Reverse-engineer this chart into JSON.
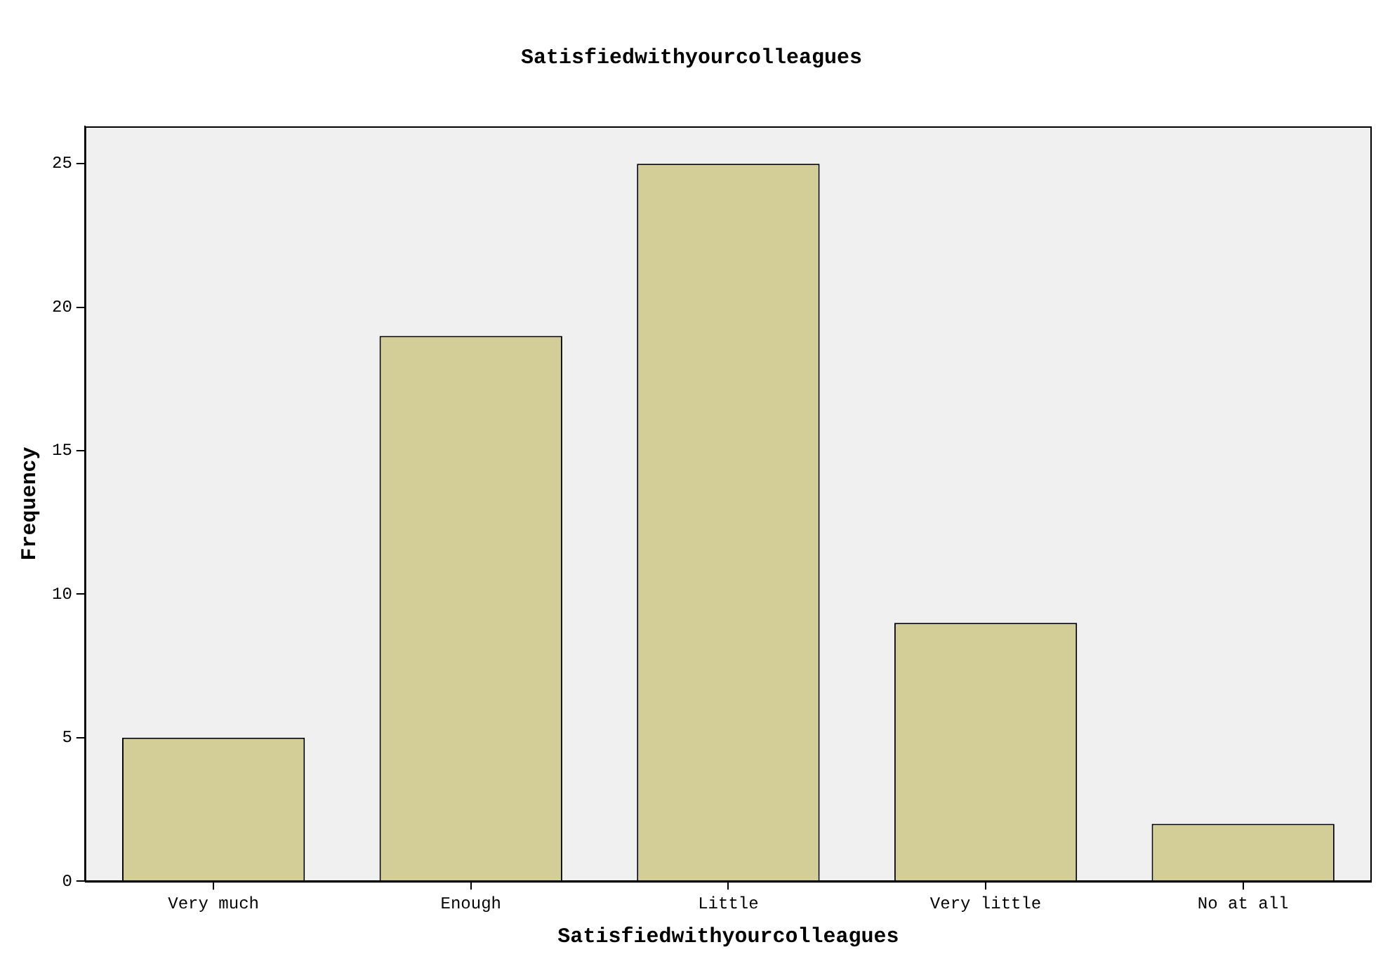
{
  "chart_data": {
    "type": "bar",
    "title": "Satisfiedwithyourcolleagues",
    "xlabel": "Satisfiedwithyourcolleagues",
    "ylabel": "Frequency",
    "categories": [
      "Very much",
      "Enough",
      "Little",
      "Very little",
      "No at all"
    ],
    "values": [
      5,
      19,
      25,
      9,
      2
    ],
    "color": "#d3ce98",
    "ylim": [
      0,
      26.3
    ],
    "yticks": [
      0,
      5,
      10,
      15,
      20,
      25
    ],
    "grid": false,
    "legend": false
  }
}
